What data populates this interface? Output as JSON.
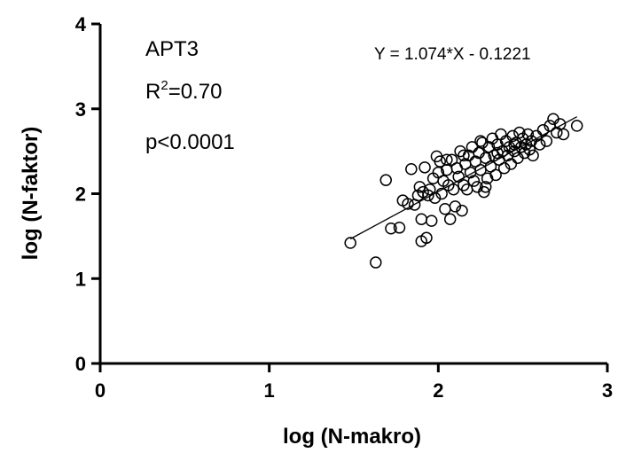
{
  "chart_data": {
    "type": "scatter",
    "title": "",
    "xlabel": "log (N-makro)",
    "ylabel": "log (N-faktor)",
    "xlim": [
      0,
      3
    ],
    "ylim": [
      0,
      4
    ],
    "x_ticks": [
      "0",
      "1",
      "2",
      "3"
    ],
    "y_ticks": [
      "0",
      "1",
      "2",
      "3",
      "4"
    ],
    "grid": false,
    "annotations": {
      "gene": "APT3",
      "r2_base": "R",
      "r2_sup": "2",
      "r2_value": "=0.70",
      "p_value": "p<0.0001",
      "equation": "Y = 1.074*X - 0.1221"
    },
    "regression": {
      "slope": 1.074,
      "intercept": -0.1221,
      "x_range": [
        1.48,
        2.82
      ]
    },
    "series": [
      {
        "points": [
          [
            1.48,
            1.42
          ],
          [
            1.63,
            1.19
          ],
          [
            1.69,
            2.16
          ],
          [
            1.72,
            1.59
          ],
          [
            1.77,
            1.6
          ],
          [
            1.79,
            1.92
          ],
          [
            1.82,
            1.88
          ],
          [
            1.84,
            2.29
          ],
          [
            1.86,
            1.87
          ],
          [
            1.88,
            1.98
          ],
          [
            1.89,
            2.08
          ],
          [
            1.9,
            1.44
          ],
          [
            1.9,
            1.7
          ],
          [
            1.91,
            2.02
          ],
          [
            1.92,
            2.31
          ],
          [
            1.93,
            1.48
          ],
          [
            1.94,
            1.98
          ],
          [
            1.95,
            2.05
          ],
          [
            1.96,
            1.68
          ],
          [
            1.97,
            2.18
          ],
          [
            1.98,
            1.95
          ],
          [
            1.99,
            2.44
          ],
          [
            2.0,
            2.25
          ],
          [
            2.01,
            2.38
          ],
          [
            2.02,
            2.0
          ],
          [
            2.03,
            2.15
          ],
          [
            2.04,
            1.82
          ],
          [
            2.05,
            2.28
          ],
          [
            2.06,
            2.1
          ],
          [
            2.07,
            1.7
          ],
          [
            2.08,
            2.4
          ],
          [
            2.09,
            2.05
          ],
          [
            2.1,
            1.85
          ],
          [
            2.11,
            2.3
          ],
          [
            2.12,
            2.2
          ],
          [
            2.13,
            2.5
          ],
          [
            2.14,
            1.8
          ],
          [
            2.15,
            2.1
          ],
          [
            2.16,
            2.35
          ],
          [
            2.17,
            2.05
          ],
          [
            2.18,
            2.45
          ],
          [
            2.19,
            2.25
          ],
          [
            2.2,
            2.55
          ],
          [
            2.21,
            2.15
          ],
          [
            2.22,
            2.38
          ],
          [
            2.23,
            2.08
          ],
          [
            2.24,
            2.48
          ],
          [
            2.25,
            2.28
          ],
          [
            2.26,
            2.6
          ],
          [
            2.27,
            2.02
          ],
          [
            2.28,
            2.42
          ],
          [
            2.29,
            2.18
          ],
          [
            2.3,
            2.55
          ],
          [
            2.31,
            2.32
          ],
          [
            2.32,
            2.65
          ],
          [
            2.33,
            2.45
          ],
          [
            2.34,
            2.22
          ],
          [
            2.35,
            2.58
          ],
          [
            2.36,
            2.4
          ],
          [
            2.37,
            2.7
          ],
          [
            2.38,
            2.5
          ],
          [
            2.39,
            2.3
          ],
          [
            2.4,
            2.62
          ],
          [
            2.41,
            2.45
          ],
          [
            2.42,
            2.55
          ],
          [
            2.43,
            2.35
          ],
          [
            2.44,
            2.68
          ],
          [
            2.45,
            2.5
          ],
          [
            2.46,
            2.6
          ],
          [
            2.47,
            2.42
          ],
          [
            2.48,
            2.72
          ],
          [
            2.49,
            2.55
          ],
          [
            2.5,
            2.65
          ],
          [
            2.51,
            2.48
          ],
          [
            2.52,
            2.58
          ],
          [
            2.53,
            2.7
          ],
          [
            2.54,
            2.52
          ],
          [
            2.55,
            2.62
          ],
          [
            2.56,
            2.45
          ],
          [
            2.58,
            2.68
          ],
          [
            2.6,
            2.58
          ],
          [
            2.62,
            2.75
          ],
          [
            2.64,
            2.62
          ],
          [
            2.66,
            2.8
          ],
          [
            2.68,
            2.88
          ],
          [
            2.7,
            2.72
          ],
          [
            2.72,
            2.82
          ],
          [
            2.74,
            2.7
          ],
          [
            2.82,
            2.8
          ],
          [
            2.28,
            2.08
          ],
          [
            2.35,
            2.48
          ],
          [
            2.25,
            2.62
          ],
          [
            2.15,
            2.45
          ],
          [
            2.05,
            2.4
          ],
          [
            2.45,
            2.58
          ]
        ]
      }
    ]
  }
}
